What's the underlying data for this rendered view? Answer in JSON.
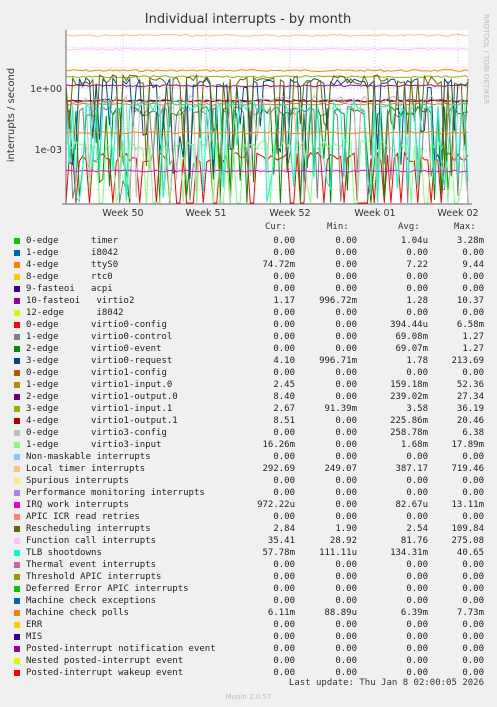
{
  "chart_data": {
    "type": "line",
    "title": "Individual interrupts - by month",
    "ylabel": "interrupts / second",
    "y_scale": "log",
    "y_ticks": [
      "1e-03",
      "1e+00"
    ],
    "x_ticks": [
      "Week 50",
      "Week 51",
      "Week 52",
      "Week 01",
      "Week 02"
    ],
    "grid": true,
    "side_label": "RRDTOOL / TOBI OETIKER",
    "columns": [
      "Cur:",
      "Min:",
      "Avg:",
      "Max:"
    ],
    "series": [
      {
        "name": "0-edge      timer",
        "color": "#00cc00",
        "cur": "0.00",
        "min": "0.00",
        "avg": "1.04u",
        "max": "3.28m"
      },
      {
        "name": "1-edge      i8042",
        "color": "#0066b3",
        "cur": "0.00",
        "min": "0.00",
        "avg": "0.00",
        "max": "0.00"
      },
      {
        "name": "4-edge      ttyS0",
        "color": "#ff8000",
        "cur": "74.72m",
        "min": "0.00",
        "avg": "7.22",
        "max": "9.44"
      },
      {
        "name": "8-edge      rtc0",
        "color": "#ffcc00",
        "cur": "0.00",
        "min": "0.00",
        "avg": "0.00",
        "max": "0.00"
      },
      {
        "name": "9-fasteoi   acpi",
        "color": "#330099",
        "cur": "0.00",
        "min": "0.00",
        "avg": "0.00",
        "max": "0.00"
      },
      {
        "name": "10-fasteoi   virtio2",
        "color": "#990099",
        "cur": "1.17",
        "min": "996.72m",
        "avg": "1.28",
        "max": "10.37"
      },
      {
        "name": "12-edge      i8042",
        "color": "#ccff00",
        "cur": "0.00",
        "min": "0.00",
        "avg": "0.00",
        "max": "0.00"
      },
      {
        "name": "0-edge      virtio0-config",
        "color": "#ff0000",
        "cur": "0.00",
        "min": "0.00",
        "avg": "394.44u",
        "max": "6.58m"
      },
      {
        "name": "1-edge      virtio0-control",
        "color": "#808080",
        "cur": "0.00",
        "min": "0.00",
        "avg": "69.08m",
        "max": "1.27"
      },
      {
        "name": "2-edge      virtio0-event",
        "color": "#008f00",
        "cur": "0.00",
        "min": "0.00",
        "avg": "69.07m",
        "max": "1.27"
      },
      {
        "name": "3-edge      virtio0-request",
        "color": "#00487d",
        "cur": "4.10",
        "min": "996.71m",
        "avg": "1.78",
        "max": "213.69"
      },
      {
        "name": "0-edge      virtio1-config",
        "color": "#b35a00",
        "cur": "0.00",
        "min": "0.00",
        "avg": "0.00",
        "max": "0.00"
      },
      {
        "name": "1-edge      virtio1-input.0",
        "color": "#b38f00",
        "cur": "2.45",
        "min": "0.00",
        "avg": "159.18m",
        "max": "52.36"
      },
      {
        "name": "2-edge      virtio1-output.0",
        "color": "#6b006b",
        "cur": "8.40",
        "min": "0.00",
        "avg": "239.02m",
        "max": "27.34"
      },
      {
        "name": "3-edge      virtio1-input.1",
        "color": "#8fb300",
        "cur": "2.67",
        "min": "91.39m",
        "avg": "3.58",
        "max": "36.19"
      },
      {
        "name": "4-edge      virtio1-output.1",
        "color": "#b30000",
        "cur": "8.51",
        "min": "0.00",
        "avg": "225.86m",
        "max": "20.46"
      },
      {
        "name": "0-edge      virtio3-config",
        "color": "#bebebe",
        "cur": "0.00",
        "min": "0.00",
        "avg": "258.78m",
        "max": "6.38"
      },
      {
        "name": "1-edge      virtio3-input",
        "color": "#80ff80",
        "cur": "16.26m",
        "min": "0.00",
        "avg": "1.68m",
        "max": "17.89m"
      },
      {
        "name": "Non-maskable interrupts",
        "color": "#80c9ff",
        "cur": "0.00",
        "min": "0.00",
        "avg": "0.00",
        "max": "0.00"
      },
      {
        "name": "Local timer interrupts",
        "color": "#ffc080",
        "cur": "292.69",
        "min": "249.07",
        "avg": "387.17",
        "max": "719.46"
      },
      {
        "name": "Spurious interrupts",
        "color": "#ffe680",
        "cur": "0.00",
        "min": "0.00",
        "avg": "0.00",
        "max": "0.00"
      },
      {
        "name": "Performance monitoring interrupts",
        "color": "#aa80ff",
        "cur": "0.00",
        "min": "0.00",
        "avg": "0.00",
        "max": "0.00"
      },
      {
        "name": "IRQ work interrupts",
        "color": "#ee00cc",
        "cur": "972.22u",
        "min": "0.00",
        "avg": "82.67u",
        "max": "13.11m"
      },
      {
        "name": "APIC ICR read retries",
        "color": "#ff8080",
        "cur": "0.00",
        "min": "0.00",
        "avg": "0.00",
        "max": "0.00"
      },
      {
        "name": "Rescheduling interrupts",
        "color": "#666600",
        "cur": "2.84",
        "min": "1.90",
        "avg": "2.54",
        "max": "109.84"
      },
      {
        "name": "Function call interrupts",
        "color": "#ffbfff",
        "cur": "35.41",
        "min": "28.92",
        "avg": "81.76",
        "max": "275.08"
      },
      {
        "name": "TLB shootdowns",
        "color": "#00ffcc",
        "cur": "57.78m",
        "min": "111.11u",
        "avg": "134.31m",
        "max": "40.65"
      },
      {
        "name": "Thermal event interrupts",
        "color": "#cc6699",
        "cur": "0.00",
        "min": "0.00",
        "avg": "0.00",
        "max": "0.00"
      },
      {
        "name": "Threshold APIC interrupts",
        "color": "#999900",
        "cur": "0.00",
        "min": "0.00",
        "avg": "0.00",
        "max": "0.00"
      },
      {
        "name": "Deferred Error APIC interrupts",
        "color": "#00cc00",
        "cur": "0.00",
        "min": "0.00",
        "avg": "0.00",
        "max": "0.00"
      },
      {
        "name": "Machine check exceptions",
        "color": "#0066b3",
        "cur": "0.00",
        "min": "0.00",
        "avg": "0.00",
        "max": "0.00"
      },
      {
        "name": "Machine check polls",
        "color": "#ff8000",
        "cur": "6.11m",
        "min": "88.89u",
        "avg": "6.39m",
        "max": "7.73m"
      },
      {
        "name": "ERR",
        "color": "#ffcc00",
        "cur": "0.00",
        "min": "0.00",
        "avg": "0.00",
        "max": "0.00"
      },
      {
        "name": "MIS",
        "color": "#330099",
        "cur": "0.00",
        "min": "0.00",
        "avg": "0.00",
        "max": "0.00"
      },
      {
        "name": "Posted-interrupt notification event",
        "color": "#990099",
        "cur": "0.00",
        "min": "0.00",
        "avg": "0.00",
        "max": "0.00"
      },
      {
        "name": "Nested posted-interrupt event",
        "color": "#ccff00",
        "cur": "0.00",
        "min": "0.00",
        "avg": "0.00",
        "max": "0.00"
      },
      {
        "name": "Posted-interrupt wakeup event",
        "color": "#ff0000",
        "cur": "0.00",
        "min": "0.00",
        "avg": "0.00",
        "max": "0.00"
      }
    ],
    "last_update": "Last update: Thu Jan  8 02:00:05 2026",
    "footer": "Munin 2.0.57"
  }
}
